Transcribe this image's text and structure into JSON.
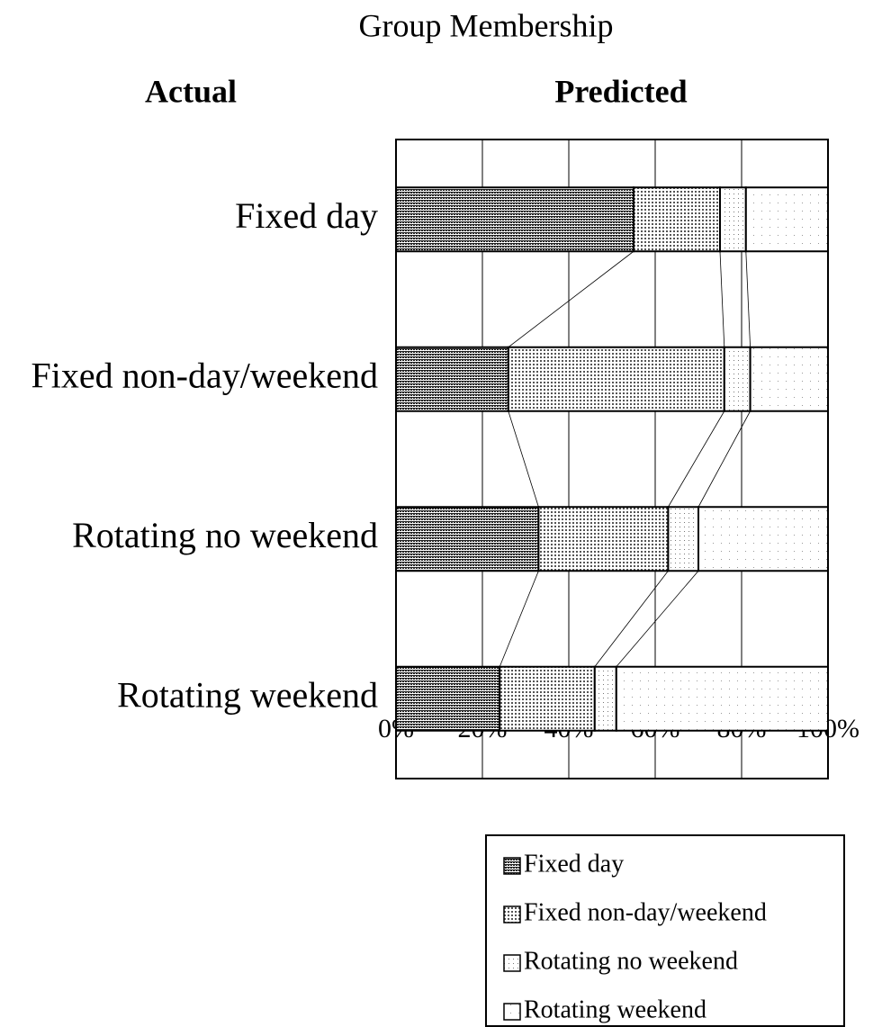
{
  "chart_data": {
    "type": "stacked_barh",
    "title": "Group Membership",
    "y_axis_title": "Actual",
    "x_axis_title": "Predicted",
    "categories": [
      "Fixed day",
      "Fixed non-day/weekend",
      "Rotating no weekend",
      "Rotating weekend"
    ],
    "series": [
      {
        "name": "Fixed day",
        "color": "#222222",
        "values": [
          55,
          26,
          33,
          24
        ]
      },
      {
        "name": "Fixed non-day/weekend",
        "color": "#555555",
        "values": [
          20,
          50,
          30,
          22
        ]
      },
      {
        "name": "Rotating no weekend",
        "color": "#777777",
        "values": [
          6,
          6,
          7,
          5
        ]
      },
      {
        "name": "Rotating weekend",
        "color": "#999999",
        "values": [
          19,
          18,
          30,
          49
        ]
      }
    ],
    "xlim": [
      0,
      100
    ],
    "xticks": [
      {
        "value": 0,
        "label": "0%"
      },
      {
        "value": 20,
        "label": "20%"
      },
      {
        "value": 40,
        "label": "40%"
      },
      {
        "value": 60,
        "label": "60%"
      },
      {
        "value": 80,
        "label": "80%"
      },
      {
        "value": 100,
        "label": "100%"
      }
    ],
    "grid": true
  }
}
